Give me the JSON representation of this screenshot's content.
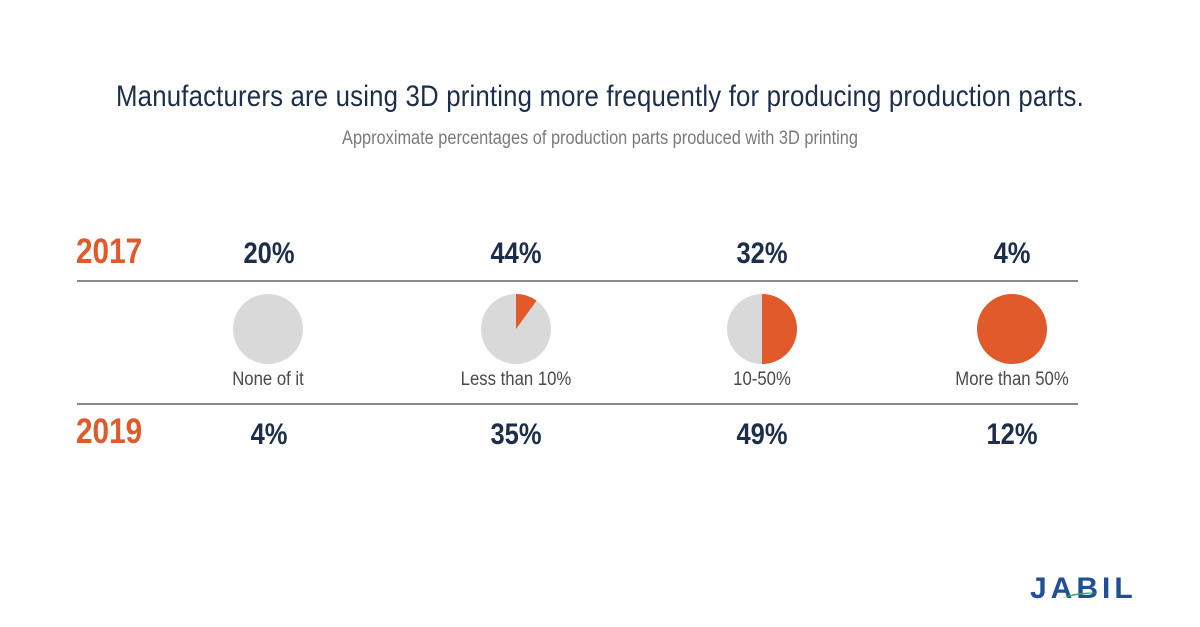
{
  "title": "Manufacturers are using 3D printing more frequently for producing production parts.",
  "subtitle": "Approximate percentages of production parts produced with 3D printing",
  "colors": {
    "navy": "#1d2e4a",
    "orange": "#e05a2b",
    "pie_gray": "#d9d9d9",
    "logo_blue": "#1f4f96",
    "logo_green": "#3aa66a"
  },
  "logo": {
    "text": "JABIL"
  },
  "chart_data": {
    "type": "table",
    "title": "Manufacturers are using 3D printing more frequently for producing production parts.",
    "subtitle": "Approximate percentages of production parts produced with 3D printing",
    "categories": [
      "None of it",
      "Less than 10%",
      "10-50%",
      "More than 50%"
    ],
    "category_fractions": [
      0,
      0.1,
      0.5,
      1.0
    ],
    "series": [
      {
        "name": "2017",
        "labels": [
          "20%",
          "44%",
          "32%",
          "4%"
        ],
        "values": [
          20,
          44,
          32,
          4
        ]
      },
      {
        "name": "2019",
        "labels": [
          "4%",
          "35%",
          "49%",
          "12%"
        ],
        "values": [
          4,
          35,
          49,
          12
        ]
      }
    ]
  }
}
